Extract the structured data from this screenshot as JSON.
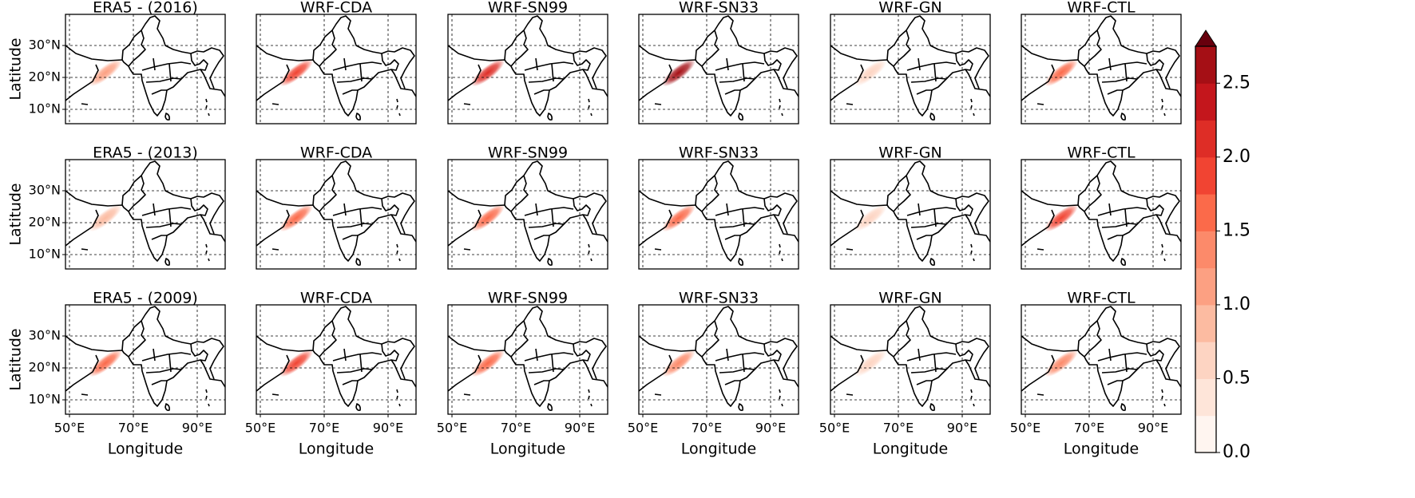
{
  "chart_data": {
    "type": "map",
    "xlabel": "Longitude",
    "ylabel": "Latitude",
    "xlim": [
      48.75,
      98.75
    ],
    "ylim": [
      5.5,
      39.75
    ],
    "xticks": [
      {
        "value": 50,
        "label": "50°E"
      },
      {
        "value": 70,
        "label": "70°E"
      },
      {
        "value": 90,
        "label": "90°E"
      }
    ],
    "yticks": [
      {
        "value": 10,
        "label": "10°N"
      },
      {
        "value": 20,
        "label": "20°N"
      },
      {
        "value": 30,
        "label": "30°N"
      }
    ],
    "grid": true,
    "columns": 6,
    "panels": [
      {
        "title": "ERA5 - (2016)",
        "peak": 1.0
      },
      {
        "title": "WRF-CDA",
        "peak": 1.75
      },
      {
        "title": "WRF-SN99",
        "peak": 2.0
      },
      {
        "title": "WRF-SN33",
        "peak": 2.5
      },
      {
        "title": "WRF-GN",
        "peak": 0.5
      },
      {
        "title": "WRF-CTL",
        "peak": 1.5
      },
      {
        "title": "ERA5 - (2013)",
        "peak": 0.75
      },
      {
        "title": "WRF-CDA",
        "peak": 1.5
      },
      {
        "title": "WRF-SN99",
        "peak": 1.5
      },
      {
        "title": "WRF-SN33",
        "peak": 1.5
      },
      {
        "title": "WRF-GN",
        "peak": 0.5
      },
      {
        "title": "WRF-CTL",
        "peak": 1.75
      },
      {
        "title": "ERA5 - (2009)",
        "peak": 1.5
      },
      {
        "title": "WRF-CDA",
        "peak": 1.75
      },
      {
        "title": "WRF-SN99",
        "peak": 1.5
      },
      {
        "title": "WRF-SN33",
        "peak": 1.25
      },
      {
        "title": "WRF-GN",
        "peak": 0.5
      },
      {
        "title": "WRF-CTL",
        "peak": 1.25
      }
    ],
    "colorbar": {
      "lim": [
        0,
        2.75
      ],
      "ticks": [
        {
          "value": 0,
          "label": "0.0"
        },
        {
          "value": 0.5,
          "label": "0.5"
        },
        {
          "value": 1,
          "label": "1.0"
        },
        {
          "value": 1.5,
          "label": "1.5"
        },
        {
          "value": 2,
          "label": "2.0"
        },
        {
          "value": 2.5,
          "label": "2.5"
        }
      ],
      "colors": [
        "#fff5f0",
        "#fee5d9",
        "#fdd4c2",
        "#fcbba1",
        "#fca082",
        "#fc8a6a",
        "#fb6a4a",
        "#f14432",
        "#de2d26",
        "#c4161c",
        "#a50f15"
      ],
      "extend": "max",
      "extend_color": "#67000d"
    }
  }
}
